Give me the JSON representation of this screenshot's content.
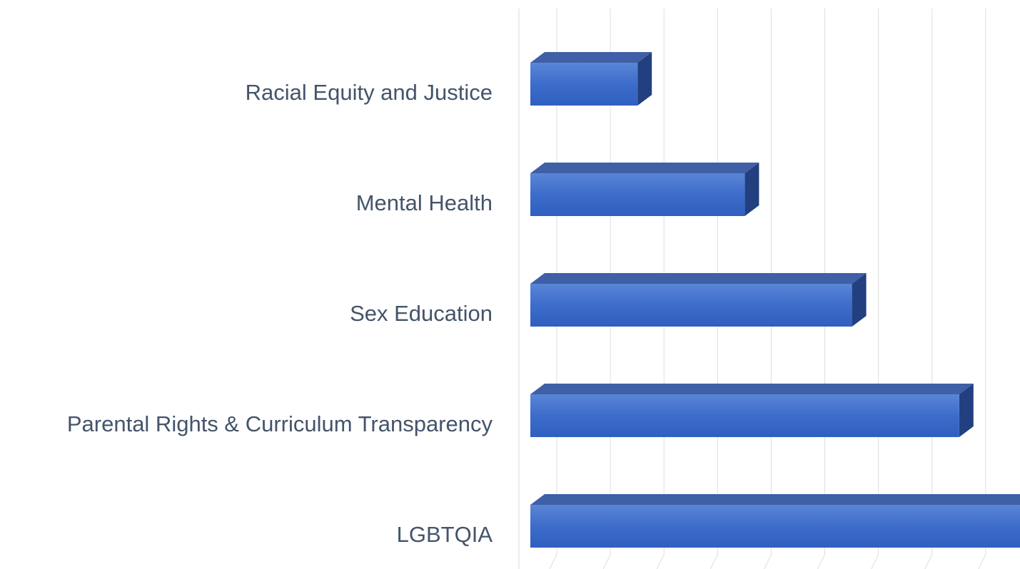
{
  "chart_data": {
    "type": "bar3d",
    "orientation": "horizontal",
    "categories": [
      "Racial Equity and Justice",
      "Mental Health",
      "Sex Education",
      "Parental Rights & Curriculum Transparency",
      "LGBTQIA"
    ],
    "values": [
      2,
      4,
      6,
      8,
      10
    ],
    "color": "#4472c4",
    "xlim": [
      0,
      10
    ],
    "xticks": [
      0,
      1,
      2,
      3,
      4,
      5,
      6,
      7,
      8,
      9,
      10
    ],
    "grid": true
  }
}
